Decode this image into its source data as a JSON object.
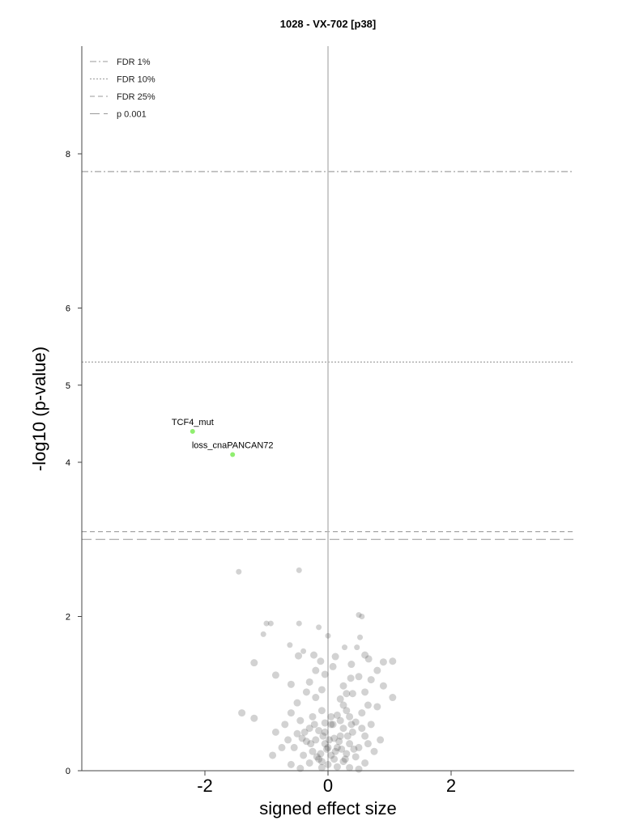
{
  "chart_data": {
    "type": "scatter",
    "title": "1028 - VX-702 [p38]",
    "xlabel": "signed effect size",
    "ylabel": "-log10 (p-value)",
    "xlim": [
      -4,
      4
    ],
    "ylim": [
      0,
      9.5
    ],
    "x_ticks": [
      "-2",
      "0",
      "2"
    ],
    "x_tick_values": [
      -2,
      0,
      2
    ],
    "y_ticks": [
      "0",
      "2",
      "4",
      "5",
      "6",
      "8"
    ],
    "y_tick_values": [
      0,
      2,
      4,
      5,
      6,
      8
    ],
    "colors": {
      "significant": "#90ee70",
      "background": "#333333",
      "line": "#999999"
    },
    "thresholds": [
      {
        "name": "FDR 1%",
        "y": 7.77,
        "dash": "dashdot"
      },
      {
        "name": "FDR 10%",
        "y": 5.3,
        "dash": "dotted"
      },
      {
        "name": "FDR 25%",
        "y": 3.1,
        "dash": "dashed"
      },
      {
        "name": "p 0.001",
        "y": 3.0,
        "dash": "longdash"
      }
    ],
    "legend_position": "top-left",
    "highlighted": [
      {
        "label": "TCF4_mut",
        "x": -2.2,
        "y": 4.4
      },
      {
        "label": "loss_cnaPANCAN72",
        "x": -1.55,
        "y": 4.1
      }
    ],
    "points": [
      [
        -1.45,
        2.58
      ],
      [
        -0.47,
        2.6
      ],
      [
        0.5,
        2.02
      ],
      [
        0.55,
        2.0
      ],
      [
        -1.0,
        1.91
      ],
      [
        -0.93,
        1.91
      ],
      [
        -0.47,
        1.91
      ],
      [
        -0.15,
        1.86
      ],
      [
        0.0,
        1.75
      ],
      [
        -1.05,
        1.77
      ],
      [
        0.52,
        1.73
      ],
      [
        -0.62,
        1.63
      ],
      [
        0.47,
        1.6
      ],
      [
        -0.4,
        1.55
      ],
      [
        0.27,
        1.6
      ],
      [
        -0.23,
        1.5
      ],
      [
        0.6,
        1.5
      ],
      [
        -0.48,
        1.49
      ],
      [
        0.12,
        1.48
      ],
      [
        -0.12,
        1.42
      ],
      [
        0.38,
        1.38
      ],
      [
        0.66,
        1.45
      ],
      [
        1.05,
        1.42
      ],
      [
        0.9,
        1.41
      ],
      [
        0.8,
        1.3
      ],
      [
        -1.2,
        1.4
      ],
      [
        -0.2,
        1.3
      ],
      [
        0.08,
        1.35
      ],
      [
        -0.05,
        1.25
      ],
      [
        0.37,
        1.2
      ],
      [
        -0.85,
        1.24
      ],
      [
        0.5,
        1.22
      ],
      [
        0.7,
        1.18
      ],
      [
        -0.3,
        1.15
      ],
      [
        0.25,
        1.1
      ],
      [
        -0.6,
        1.12
      ],
      [
        0.9,
        1.1
      ],
      [
        -0.1,
        1.05
      ],
      [
        0.4,
        1.0
      ],
      [
        0.6,
        1.02
      ],
      [
        -0.35,
        1.02
      ],
      [
        0.3,
        1.0
      ],
      [
        1.05,
        0.95
      ],
      [
        -0.2,
        0.95
      ],
      [
        0.2,
        0.93
      ],
      [
        -0.5,
        0.88
      ],
      [
        0.65,
        0.85
      ],
      [
        0.8,
        0.83
      ],
      [
        0.25,
        0.85
      ],
      [
        -1.4,
        0.75
      ],
      [
        -1.2,
        0.68
      ],
      [
        -0.1,
        0.78
      ],
      [
        0.3,
        0.78
      ],
      [
        -0.6,
        0.75
      ],
      [
        0.55,
        0.75
      ],
      [
        0.35,
        0.7
      ],
      [
        -0.25,
        0.7
      ],
      [
        0.15,
        0.72
      ],
      [
        -0.45,
        0.65
      ],
      [
        0.45,
        0.63
      ],
      [
        -0.05,
        0.62
      ],
      [
        0.05,
        0.6
      ],
      [
        -0.7,
        0.6
      ],
      [
        0.7,
        0.6
      ],
      [
        0.25,
        0.55
      ],
      [
        -0.3,
        0.55
      ],
      [
        -0.15,
        0.52
      ],
      [
        0.4,
        0.5
      ],
      [
        -0.5,
        0.48
      ],
      [
        0.6,
        0.45
      ],
      [
        -0.85,
        0.5
      ],
      [
        0.2,
        0.45
      ],
      [
        -0.2,
        0.4
      ],
      [
        0.1,
        0.42
      ],
      [
        -0.35,
        0.38
      ],
      [
        0.35,
        0.35
      ],
      [
        -0.05,
        0.35
      ],
      [
        0.5,
        0.3
      ],
      [
        -0.55,
        0.3
      ],
      [
        0.15,
        0.3
      ],
      [
        -0.25,
        0.25
      ],
      [
        0.3,
        0.22
      ],
      [
        -0.4,
        0.2
      ],
      [
        0.05,
        0.2
      ],
      [
        0.45,
        0.18
      ],
      [
        -0.15,
        0.15
      ],
      [
        0.25,
        0.12
      ],
      [
        -0.3,
        0.1
      ],
      [
        0.6,
        0.1
      ],
      [
        -0.6,
        0.08
      ],
      [
        0.0,
        0.08
      ],
      [
        0.15,
        0.05
      ],
      [
        -0.1,
        0.04
      ],
      [
        0.35,
        0.04
      ],
      [
        -0.45,
        0.03
      ],
      [
        0.5,
        0.02
      ],
      [
        0.08,
        0.6
      ],
      [
        -0.08,
        0.45
      ],
      [
        0.2,
        0.65
      ],
      [
        -0.22,
        0.6
      ],
      [
        0.32,
        0.45
      ],
      [
        -0.38,
        0.5
      ],
      [
        0.12,
        0.25
      ],
      [
        -0.12,
        0.22
      ],
      [
        0.28,
        0.15
      ],
      [
        -0.28,
        0.35
      ],
      [
        0.42,
        0.28
      ],
      [
        0.02,
        0.4
      ],
      [
        -0.02,
        0.28
      ],
      [
        0.18,
        0.38
      ],
      [
        -0.18,
        0.18
      ],
      [
        0.22,
        0.28
      ],
      [
        0.05,
        0.7
      ],
      [
        -0.05,
        0.5
      ],
      [
        0.0,
        0.3
      ],
      [
        0.1,
        0.15
      ],
      [
        -0.1,
        0.12
      ],
      [
        0.38,
        0.6
      ],
      [
        -0.42,
        0.42
      ],
      [
        0.55,
        0.55
      ],
      [
        0.65,
        0.35
      ],
      [
        -0.65,
        0.4
      ],
      [
        0.75,
        0.25
      ],
      [
        -0.75,
        0.3
      ],
      [
        0.85,
        0.4
      ],
      [
        -0.9,
        0.2
      ]
    ]
  }
}
